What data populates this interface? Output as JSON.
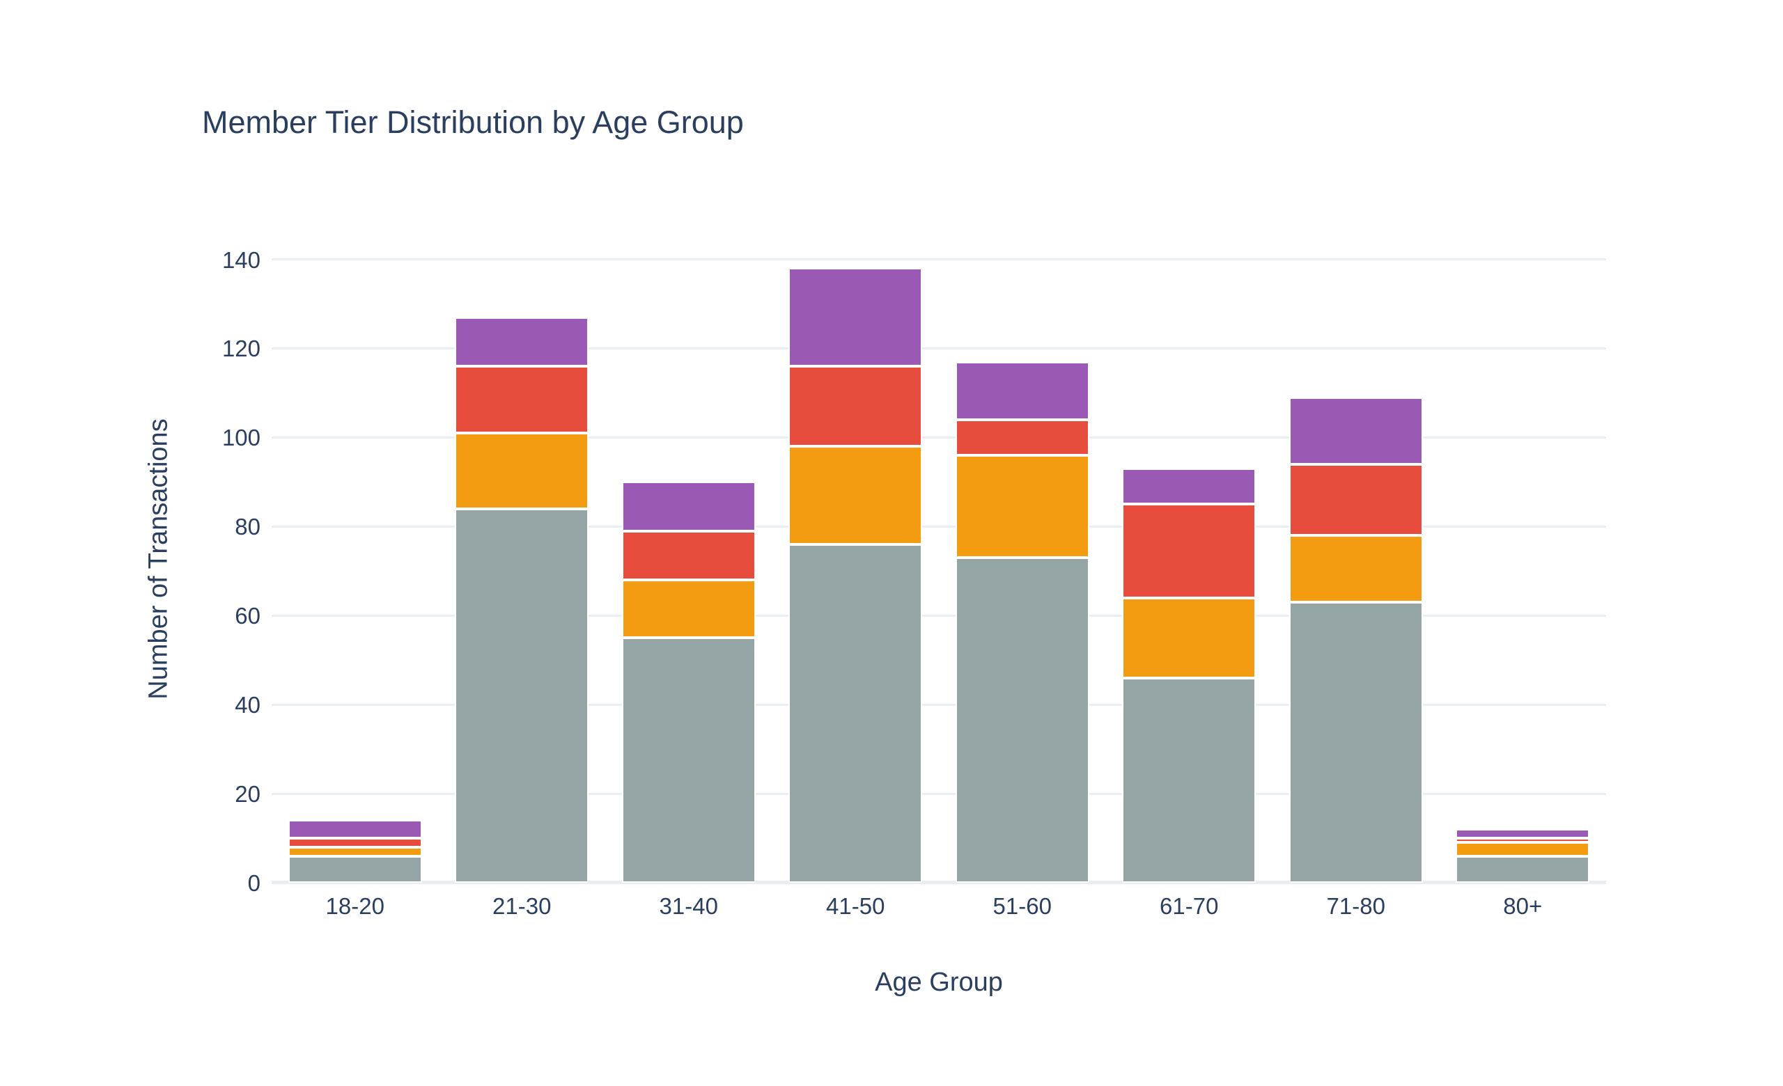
{
  "chart_data": {
    "type": "bar",
    "stacked": true,
    "title": "Member Tier Distribution by Age Group",
    "xlabel": "Age Group",
    "ylabel": "Number of Transactions",
    "categories": [
      "18-20",
      "21-30",
      "31-40",
      "41-50",
      "51-60",
      "61-70",
      "71-80",
      "80+"
    ],
    "series": [
      {
        "name": "gray",
        "color": "#95A5A6",
        "values": [
          6,
          84,
          55,
          76,
          73,
          46,
          63,
          6
        ]
      },
      {
        "name": "orange",
        "color": "#F39C12",
        "values": [
          2,
          17,
          13,
          22,
          23,
          18,
          15,
          3
        ]
      },
      {
        "name": "red",
        "color": "#E74C3C",
        "values": [
          2,
          15,
          11,
          18,
          8,
          21,
          16,
          1
        ]
      },
      {
        "name": "purple",
        "color": "#9B59B6",
        "values": [
          4,
          11,
          11,
          22,
          13,
          8,
          15,
          2
        ]
      }
    ],
    "stack_totals": [
      14,
      127,
      90,
      138,
      117,
      93,
      109,
      12
    ],
    "yticks": [
      0,
      20,
      40,
      60,
      80,
      100,
      120,
      140
    ],
    "ylim": [
      0,
      145.4
    ],
    "grid": true,
    "legend": "none",
    "colors": {
      "text": "#2A3F5F",
      "grid": "#E9EEF6",
      "background": "#FFFFFF"
    }
  }
}
